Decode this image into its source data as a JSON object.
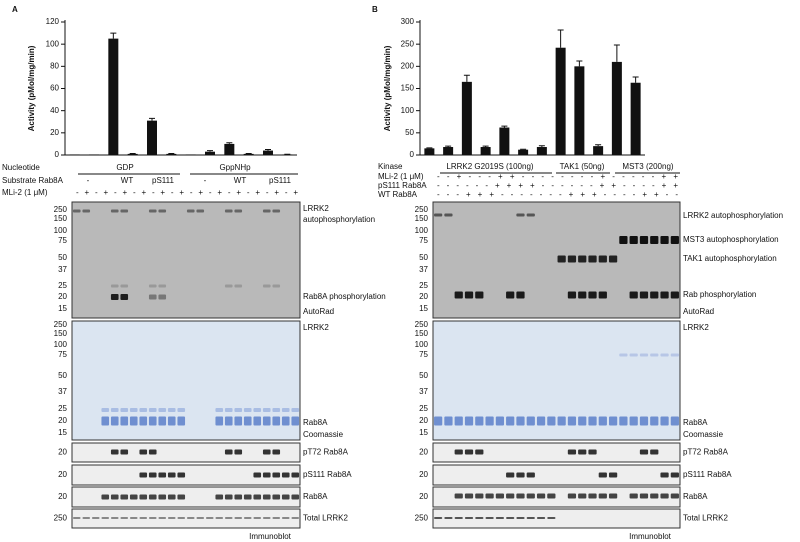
{
  "chart_data": [
    {
      "type": "bar",
      "panel_label": "A",
      "ylabel": "Activity (pMol/mg/min)",
      "categories": [
        null,
        null,
        null,
        null,
        null,
        null,
        null,
        null,
        null,
        null,
        null,
        null
      ],
      "values": [
        0.5,
        0.5,
        105,
        1,
        31,
        1,
        0.5,
        3,
        10,
        1,
        4,
        0.5
      ],
      "errors": [
        0,
        0,
        5,
        0.3,
        2,
        0.3,
        0,
        1,
        1,
        0.3,
        1,
        0.2
      ],
      "color": "#111111",
      "ylim": [
        0,
        120
      ],
      "yticks": [
        0,
        20,
        40,
        60,
        80,
        100,
        120
      ]
    },
    {
      "type": "bar",
      "panel_label": "B",
      "ylabel": "Activity (pMol/mg/min)",
      "categories": [
        null,
        null,
        null,
        null,
        null,
        null,
        null,
        null,
        null,
        null,
        null,
        null
      ],
      "values": [
        15,
        18,
        165,
        18,
        62,
        12,
        18,
        242,
        200,
        20,
        210,
        163
      ],
      "errors": [
        1,
        2,
        15,
        2,
        3,
        1,
        3,
        40,
        12,
        3,
        38,
        13
      ],
      "color": "#111111",
      "ylim": [
        0,
        300
      ],
      "yticks": [
        0,
        50,
        100,
        150,
        200,
        250,
        300
      ]
    }
  ],
  "panel_a": {
    "nucleotide_label": "Nucleotide",
    "nucleotides": [
      "GDP",
      "GppNHp"
    ],
    "substrate_label": "Substrate Rab8A",
    "substrates": [
      "-",
      "WT",
      "pS111",
      "-",
      "WT",
      "pS111"
    ],
    "inhibitor_label": "MLi-2 (1 μM)",
    "inhibitor_signs": "- + - + - + - + - + - + - + - + - + - + - + - +",
    "autorad": {
      "markers": [
        "250",
        "150",
        "100",
        "75",
        "50",
        "37",
        "25",
        "20",
        "15"
      ],
      "labels": [
        "LRRK2",
        "autophosphorylation",
        "Rab8A phosphorylation",
        "AutoRad"
      ]
    },
    "coomassie": {
      "markers": [
        "250",
        "150",
        "100",
        "75",
        "50",
        "37",
        "25",
        "20",
        "15"
      ],
      "labels": [
        "LRRK2",
        "Rab8A",
        "Coomassie"
      ]
    },
    "immunoblot": {
      "markers": [
        "20",
        "20",
        "20",
        "250"
      ],
      "labels": [
        "pT72  Rab8A",
        "pS111 Rab8A",
        "Rab8A",
        "Total LRRK2"
      ],
      "caption": "Immunoblot"
    }
  },
  "panel_b": {
    "kinase_label": "Kinase",
    "kinases": [
      "LRRK2 G2019S (100ng)",
      "TAK1 (50ng)",
      "MST3 (200ng)"
    ],
    "treatments": [
      {
        "label": "MLi-2 (1 μM)",
        "signs": "- - + - - - + + - - - - - - - - + - - - - - + +"
      },
      {
        "label": "pS111 Rab8A",
        "signs": "- - - - - - + + + + - - - - - - + + - - - - + +"
      },
      {
        "label": "WT Rab8A",
        "signs": "- - - + + + - - - - - - - + + + - - - - + + - -"
      }
    ],
    "autorad": {
      "markers": [
        "250",
        "150",
        "100",
        "75",
        "50",
        "37",
        "25",
        "20",
        "15"
      ],
      "labels": [
        "LRRK2 autophosphorylation",
        "MST3 autophosphorylation",
        "TAK1 autophosphorylation",
        "Rab phosphorylation",
        "AutoRad"
      ]
    },
    "coomassie": {
      "markers": [
        "250",
        "150",
        "100",
        "75",
        "50",
        "37",
        "25",
        "20",
        "15"
      ],
      "labels": [
        "LRRK2",
        "Rab8A",
        "Coomassie"
      ]
    },
    "immunoblot": {
      "markers": [
        "20",
        "20",
        "20",
        "250"
      ],
      "labels": [
        "pT72  Rab8A",
        "pS111 Rab8A",
        "Rab8A",
        "Total LRRK2"
      ],
      "caption": "Immunoblot"
    }
  }
}
